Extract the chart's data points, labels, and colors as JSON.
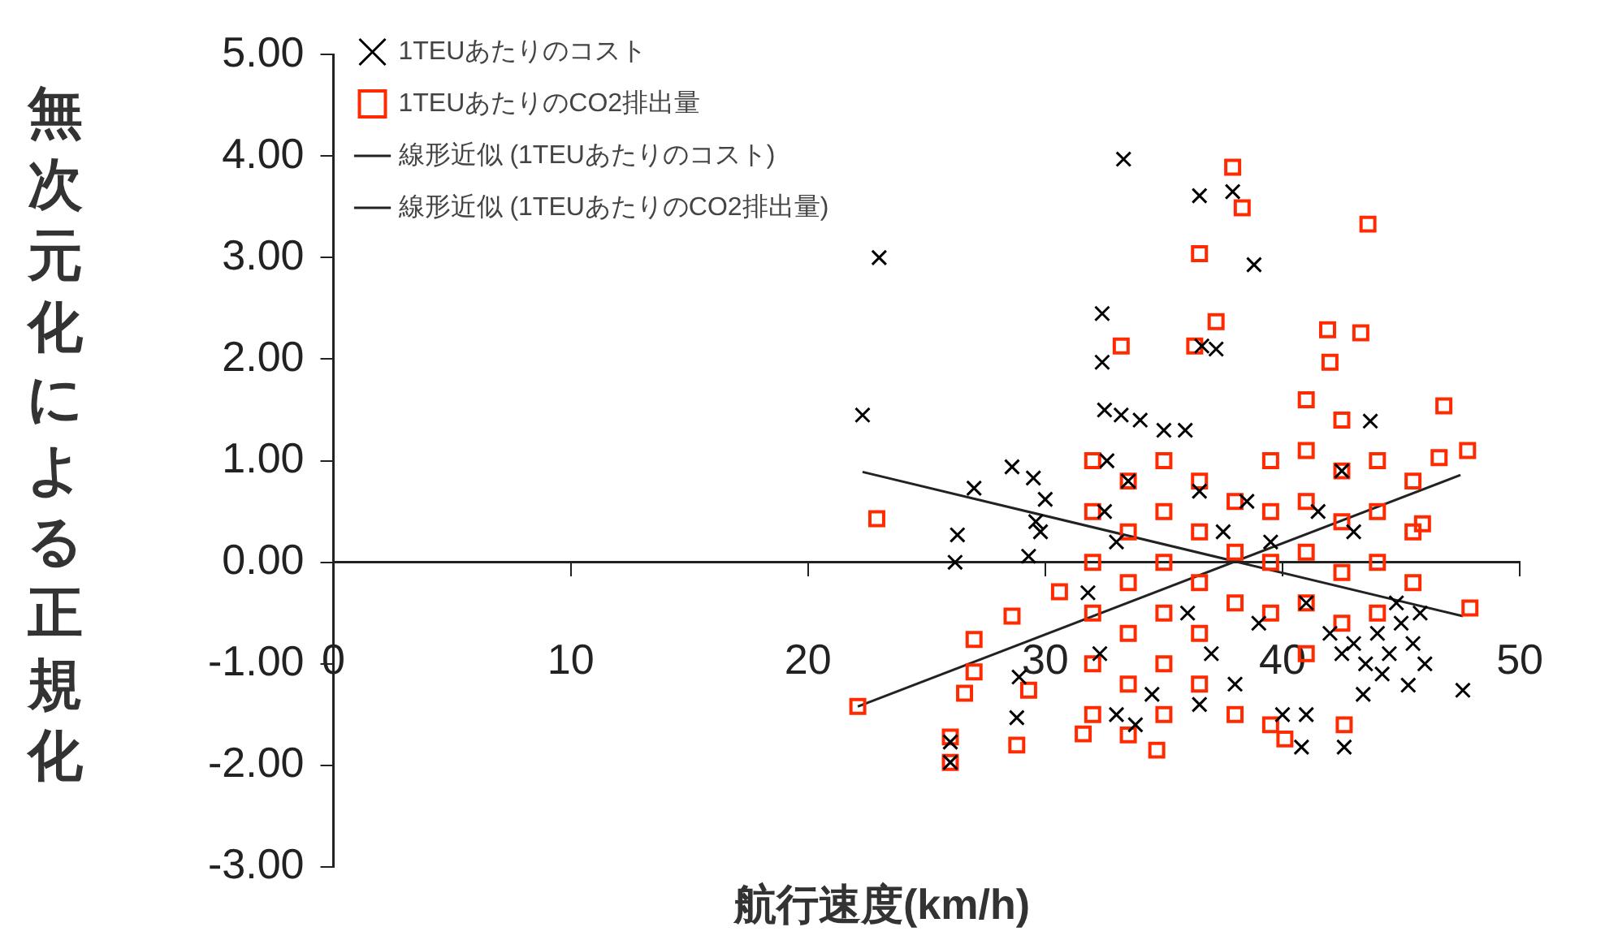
{
  "chart_data": {
    "type": "scatter",
    "xlabel": "航行速度(km/h)",
    "ylabel": "無次元化による正規化",
    "xlim": [
      0,
      50
    ],
    "xticks": [
      0,
      10,
      20,
      30,
      40,
      50
    ],
    "ylim": [
      -3,
      5
    ],
    "yticks": [
      {
        "value": -3,
        "label": "-3.00"
      },
      {
        "value": -2,
        "label": "-2.00"
      },
      {
        "value": -1,
        "label": "-1.00"
      },
      {
        "value": 0,
        "label": "0.00"
      },
      {
        "value": 1,
        "label": "1.00"
      },
      {
        "value": 2,
        "label": "2.00"
      },
      {
        "value": 3,
        "label": "3.00"
      },
      {
        "value": 4,
        "label": "4.00"
      },
      {
        "value": 5,
        "label": "5.00"
      }
    ],
    "grid": false,
    "legend": "top left",
    "series": [
      {
        "name": "1TEUあたりのコスト",
        "type": "scatter",
        "marker": "cross",
        "color": "#000000",
        "x": [
          22.3,
          23.0,
          26.2,
          26.3,
          27.0,
          28.6,
          29.5,
          30.0,
          29.8,
          29.3,
          29.6,
          28.9,
          28.8,
          26.0,
          26.0,
          32.4,
          32.4,
          33.3,
          32.5,
          33.2,
          34.0,
          35.0,
          32.6,
          33.5,
          32.5,
          33.0,
          31.8,
          32.3,
          33.0,
          33.8,
          34.5,
          36.5,
          37.9,
          38.8,
          36.6,
          37.2,
          35.9,
          36.5,
          37.5,
          38.5,
          39.5,
          36.0,
          37.0,
          38.0,
          36.5,
          39.0,
          40.0,
          41.0,
          41.5,
          42.5,
          43.7,
          43.0,
          42.0,
          42.5,
          43.0,
          43.5,
          44.0,
          44.5,
          45.0,
          45.5,
          46.0,
          44.2,
          45.3,
          47.6,
          40.8,
          42.6,
          41.0,
          43.4,
          44.8,
          45.8
        ],
        "values": [
          1.45,
          3.0,
          0.0,
          0.27,
          0.73,
          0.94,
          0.83,
          0.62,
          0.3,
          0.06,
          0.4,
          -1.13,
          -1.53,
          -1.77,
          -1.97,
          2.45,
          1.97,
          3.97,
          1.5,
          1.45,
          1.4,
          1.3,
          1.0,
          0.8,
          0.5,
          0.2,
          -0.3,
          -0.9,
          -1.5,
          -1.6,
          -1.3,
          3.61,
          3.65,
          2.93,
          2.13,
          2.1,
          1.3,
          0.7,
          0.3,
          0.6,
          0.2,
          -0.5,
          -0.9,
          -1.2,
          -1.4,
          -0.6,
          -1.5,
          -0.4,
          0.5,
          0.9,
          1.39,
          0.3,
          -0.7,
          -0.9,
          -0.8,
          -1.0,
          -0.7,
          -0.9,
          -0.6,
          -0.8,
          -1.0,
          -1.1,
          -1.21,
          -1.26,
          -1.82,
          -1.82,
          -1.5,
          -1.3,
          -0.4,
          -0.5
        ]
      },
      {
        "name": "1TEUあたりのCO2排出量",
        "type": "scatter",
        "marker": "square",
        "color": "#ff2a00",
        "x": [
          22.9,
          22.1,
          27.0,
          27.0,
          26.6,
          26.0,
          26.0,
          28.8,
          29.3,
          28.6,
          30.6,
          37.9,
          38.3,
          36.5,
          43.6,
          36.3,
          37.2,
          41.9,
          43.3,
          33.2,
          42.0,
          46.8,
          46.6,
          47.8,
          47.9,
          45.9,
          40.1,
          42.6,
          34.7,
          31.6,
          32,
          32,
          32,
          32,
          32,
          32,
          33.5,
          33.5,
          33.5,
          33.5,
          33.5,
          33.5,
          35,
          35,
          35,
          35,
          35,
          35,
          36.5,
          36.5,
          36.5,
          36.5,
          36.5,
          38,
          38,
          38,
          38,
          39.5,
          39.5,
          39.5,
          39.5,
          39.5,
          41,
          41,
          41,
          41,
          41,
          41,
          42.5,
          42.5,
          42.5,
          42.5,
          42.5,
          44,
          44,
          44,
          44,
          45.5,
          45.5,
          45.5
        ],
        "values": [
          0.43,
          -1.42,
          -0.76,
          -1.08,
          -1.29,
          -1.72,
          -1.97,
          -1.8,
          -1.26,
          -0.53,
          -0.29,
          3.89,
          3.49,
          3.04,
          3.33,
          2.13,
          2.37,
          2.29,
          2.26,
          2.13,
          1.97,
          1.54,
          1.03,
          1.1,
          -0.45,
          0.38,
          -1.74,
          -1.6,
          -1.85,
          -1.69,
          1.0,
          0.5,
          0,
          -0.5,
          -1.0,
          -1.5,
          0.8,
          0.3,
          -0.2,
          -0.7,
          -1.2,
          -1.7,
          1.0,
          0.5,
          0,
          -0.5,
          -1.0,
          -1.5,
          0.8,
          0.3,
          -0.2,
          -0.7,
          -1.2,
          0.6,
          0.1,
          -0.4,
          -1.5,
          1.0,
          0.5,
          0,
          -0.5,
          -1.6,
          1.6,
          1.1,
          0.6,
          0.1,
          -0.4,
          -0.9,
          1.4,
          0.9,
          0.4,
          -0.1,
          -0.6,
          1.0,
          0.5,
          0,
          -0.5,
          0.8,
          0.3,
          -0.2
        ]
      },
      {
        "name": "線形近似 (1TEUあたりのコスト)",
        "type": "line",
        "marker": "none",
        "color": "#222222",
        "x": [
          22.3,
          47.6
        ],
        "values": [
          0.89,
          -0.53
        ]
      },
      {
        "name": "線形近似 (1TEUあたりのCO2排出量)",
        "type": "line",
        "marker": "none",
        "color": "#222222",
        "x": [
          22.1,
          47.5
        ],
        "values": [
          -1.42,
          0.86
        ]
      }
    ]
  }
}
